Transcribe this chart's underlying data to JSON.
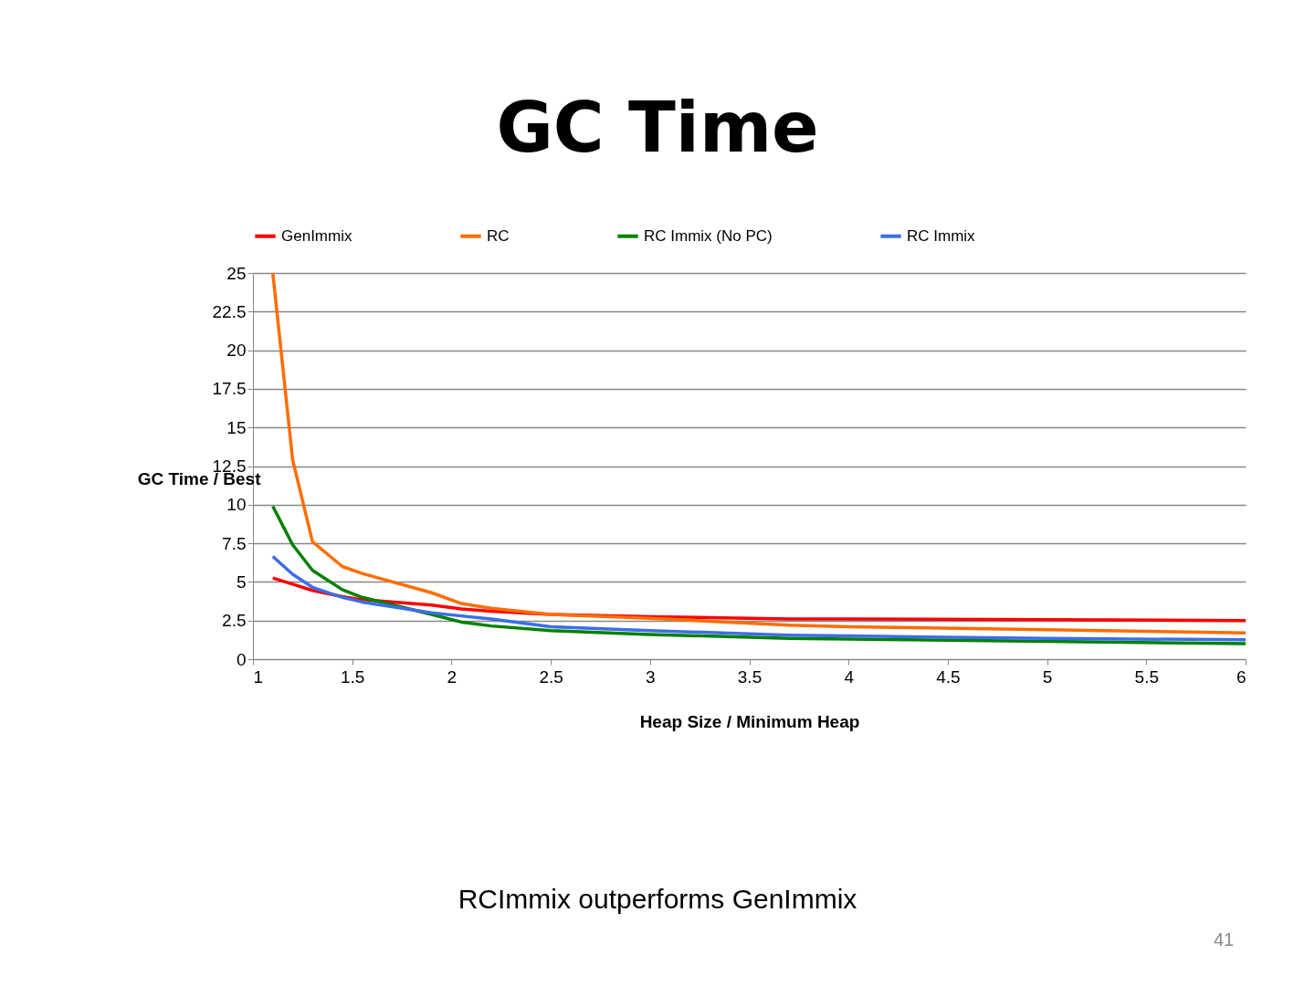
{
  "chart_data": {
    "type": "line",
    "title": "GC Time",
    "xlabel": "Heap Size / Minimum Heap",
    "ylabel": "GC Time / Best",
    "x": [
      1.1,
      1.2,
      1.3,
      1.45,
      1.55,
      1.9,
      2.05,
      2.2,
      2.5,
      3,
      3.7,
      4,
      5,
      6
    ],
    "series": [
      {
        "name": "GenImmix",
        "color": "#ff0000",
        "values": [
          5.25,
          4.85,
          4.45,
          4.05,
          3.85,
          3.5,
          3.25,
          3.1,
          2.9,
          2.75,
          2.6,
          2.6,
          2.55,
          2.5
        ]
      },
      {
        "name": "RC",
        "color": "#ff6d00",
        "values": [
          25,
          12.9,
          7.6,
          6.0,
          5.55,
          4.3,
          3.6,
          3.3,
          2.9,
          2.65,
          2.2,
          2.1,
          1.9,
          1.7
        ]
      },
      {
        "name": "RC Immix (No PC)",
        "color": "#008000",
        "values": [
          9.9,
          7.4,
          5.75,
          4.5,
          4.0,
          2.9,
          2.4,
          2.15,
          1.85,
          1.6,
          1.35,
          1.3,
          1.15,
          1.0
        ]
      },
      {
        "name": "RC Immix",
        "color": "#3c6ee8",
        "values": [
          6.65,
          5.5,
          4.65,
          4.0,
          3.7,
          3.0,
          2.8,
          2.6,
          2.1,
          1.85,
          1.55,
          1.5,
          1.35,
          1.25
        ]
      }
    ],
    "xlim": [
      1,
      6
    ],
    "xticks": [
      1,
      1.5,
      2,
      2.5,
      3,
      3.5,
      4,
      4.5,
      5,
      5.5,
      6
    ],
    "ylim": [
      0,
      25
    ],
    "yticks": [
      0,
      2.5,
      5,
      7.5,
      10,
      12.5,
      15,
      17.5,
      20,
      22.5,
      25
    ],
    "grid": "y",
    "legend": "top",
    "marker": "none",
    "line_style": "solid",
    "annotations": [
      "RCImmix outperforms GenImmix",
      "41"
    ]
  }
}
